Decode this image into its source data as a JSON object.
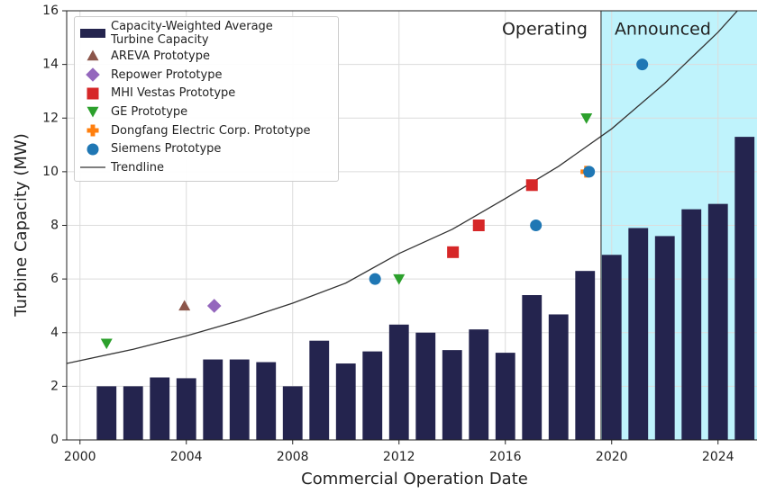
{
  "chart_data": {
    "type": "combo",
    "xlabel": "Commercial Operation Date",
    "ylabel": "Turbine Capacity (MW)",
    "xlim": [
      1999.5,
      2025.5
    ],
    "ylim": [
      0,
      16
    ],
    "xticks": [
      2000,
      2004,
      2008,
      2012,
      2016,
      2020,
      2024
    ],
    "yticks": [
      0,
      2,
      4,
      6,
      8,
      10,
      12,
      14,
      16
    ],
    "grid": true,
    "legend": "upper left",
    "shaded_from": 2019.6,
    "shade_color": "#bff3fc",
    "annotations": [
      {
        "text": "Operating"
      },
      {
        "text": "Announced"
      }
    ],
    "series": [
      {
        "name": "Capacity-Weighted Average Turbine Capacity",
        "type": "bar",
        "color": "#24244e",
        "x": [
          2001,
          2002,
          2003,
          2004,
          2005,
          2006,
          2007,
          2008,
          2009,
          2010,
          2011,
          2012,
          2013,
          2014,
          2015,
          2016,
          2017,
          2018,
          2019,
          2020,
          2021,
          2022,
          2023,
          2024,
          2025
        ],
        "values": [
          2.0,
          2.0,
          2.33,
          2.3,
          3.0,
          3.0,
          2.9,
          2.0,
          3.7,
          2.85,
          3.3,
          4.3,
          4.0,
          3.35,
          4.12,
          3.25,
          5.4,
          4.68,
          6.3,
          6.9,
          7.9,
          7.6,
          8.6,
          8.8,
          11.3
        ]
      },
      {
        "name": "AREVA Prototype",
        "type": "scatter",
        "marker": "triangle-up",
        "color": "#8c564b",
        "x": [
          2003.93
        ],
        "values": [
          5.0
        ]
      },
      {
        "name": "Repower Prototype",
        "type": "scatter",
        "marker": "diamond",
        "color": "#9467bd",
        "x": [
          2005.05
        ],
        "values": [
          5.0
        ]
      },
      {
        "name": "MHI Vestas Prototype",
        "type": "scatter",
        "marker": "square",
        "color": "#d62728",
        "x": [
          2014.03,
          2015.0,
          2017.0
        ],
        "values": [
          7.0,
          8.0,
          9.5
        ]
      },
      {
        "name": "GE Prototype",
        "type": "scatter",
        "marker": "triangle-down",
        "color": "#2ca02c",
        "x": [
          2001.0,
          2012.0,
          2019.05
        ],
        "values": [
          3.6,
          6.0,
          12.0
        ]
      },
      {
        "name": "Dongfang Electric Corp. Prototype",
        "type": "scatter",
        "marker": "plus",
        "color": "#ff7f0e",
        "x": [
          2019.05
        ],
        "values": [
          10.0
        ]
      },
      {
        "name": "Siemens Prototype",
        "type": "scatter",
        "marker": "circle",
        "color": "#1f77b4",
        "x": [
          2011.1,
          2017.15,
          2019.15,
          2021.15
        ],
        "values": [
          6.0,
          8.0,
          10.0,
          14.0
        ]
      },
      {
        "name": "Trendline",
        "type": "line",
        "color": "#333333",
        "x": [
          1999.5,
          2002,
          2004,
          2006,
          2008,
          2010,
          2012,
          2014,
          2016,
          2018,
          2020,
          2022,
          2024,
          2025
        ],
        "values": [
          2.85,
          3.38,
          3.88,
          4.45,
          5.1,
          5.85,
          6.95,
          7.85,
          9.0,
          10.2,
          11.6,
          13.3,
          15.2,
          16.3
        ]
      }
    ]
  }
}
